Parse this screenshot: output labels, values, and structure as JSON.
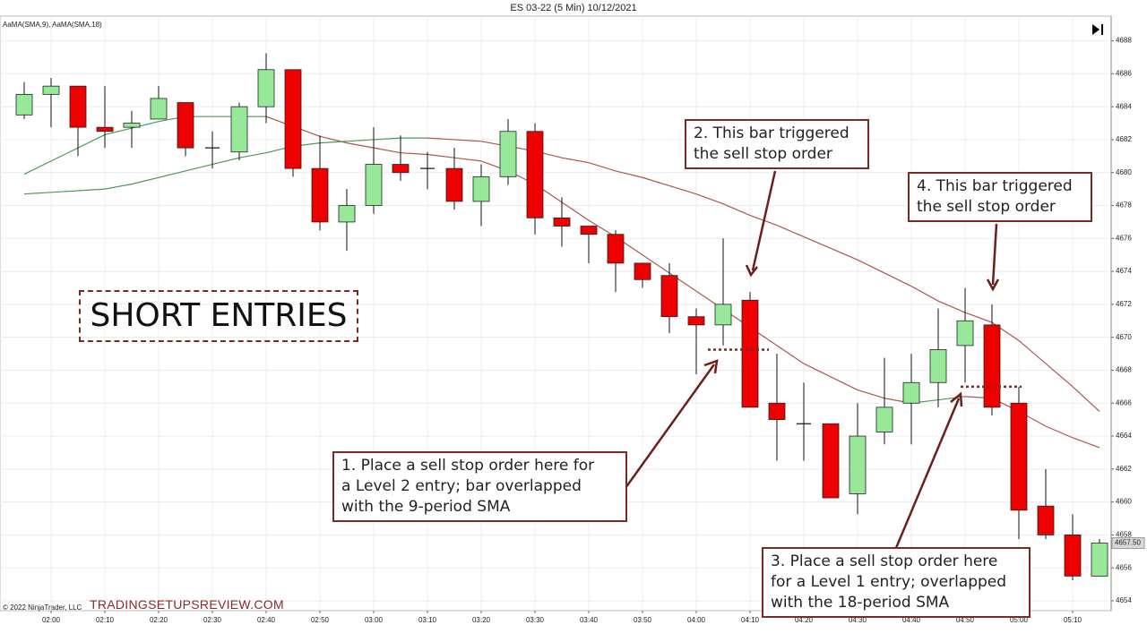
{
  "chart_data": {
    "type": "candlestick",
    "title": "ES 03-22 (5 Min)  10/12/2021",
    "indicator_label": "AaMA(SMA,9), AaMA(SMA,18)",
    "copyright": "© 2022 NinjaTrader, LLC",
    "watermark": "TRADINGSETUPSREVIEW.COM",
    "boxed_label": "SHORT ENTRIES",
    "categories": [
      null,
      "02:00",
      null,
      "02:10",
      null,
      "02:20",
      null,
      "02:30",
      null,
      "02:40",
      null,
      "02:50",
      null,
      "03:00",
      null,
      "03:10",
      null,
      "03:20",
      null,
      "03:30",
      null,
      "03:40",
      null,
      "03:50",
      null,
      "04:00",
      null,
      "04:10",
      null,
      "04:20",
      null,
      "04:30",
      null,
      "04:40",
      null,
      "04:50",
      null,
      "05:00",
      null,
      "05:10",
      null
    ],
    "open": [
      4683.5,
      4684.75,
      4685.25,
      4682.75,
      4682.75,
      4683.25,
      4684.25,
      4681.5,
      4681.25,
      4684,
      4686.25,
      4680.25,
      4677,
      4678,
      4680.5,
      4680.25,
      4680.25,
      4678.25,
      4679.75,
      4682.5,
      4677.25,
      4676.75,
      4676.25,
      4674.5,
      4673.75,
      4671.25,
      4670.75,
      4672.25,
      4666,
      4664.75,
      4664.75,
      4660.5,
      4664.25,
      4666,
      4667.25,
      4669.5,
      4670.75,
      4666,
      4659.75,
      4658,
      4655.5
    ],
    "high": [
      4685.5,
      4685.75,
      4685.25,
      4685.25,
      4683.75,
      4685.25,
      4684.25,
      4682.5,
      4684.25,
      4687.25,
      4686.25,
      4682.25,
      4679,
      4682.75,
      4682.25,
      4681.25,
      4681.5,
      4680.5,
      4683.25,
      4683,
      4678.5,
      4676.75,
      4676.5,
      4674.5,
      4674.5,
      4671.75,
      4676,
      4672.75,
      4669,
      4667.25,
      4664.75,
      4666,
      4668.75,
      4669,
      4671.75,
      4673,
      4672,
      4667,
      4662,
      4659.25,
      4657.75
    ],
    "low": [
      4683.25,
      4682.75,
      4681,
      4681.5,
      4681.5,
      4683.25,
      4681,
      4680.25,
      4680.75,
      4683,
      4679.75,
      4676.5,
      4675.25,
      4677.5,
      4679.5,
      4679,
      4677.75,
      4676.75,
      4679.25,
      4676.25,
      4675.5,
      4674.5,
      4672.75,
      4673,
      4670.25,
      4667.75,
      4669.5,
      4665.75,
      4662.5,
      4662.5,
      4660.25,
      4659.25,
      4663.5,
      4663.5,
      4665.75,
      4667.25,
      4665.25,
      4657.75,
      4657.75,
      4655.25,
      4655.5
    ],
    "close": [
      4684.75,
      4685.25,
      4682.75,
      4682.5,
      4683,
      4684.5,
      4681.5,
      4681.5,
      4684,
      4686.25,
      4680.25,
      4677,
      4678,
      4680.5,
      4680,
      4680.25,
      4678.25,
      4679.75,
      4682.5,
      4677.25,
      4676.75,
      4676.25,
      4674.5,
      4673.5,
      4671.25,
      4670.75,
      4672,
      4665.75,
      4665,
      4664.75,
      4660.25,
      4664,
      4665.75,
      4667.25,
      4669.25,
      4671,
      4665.75,
      4659.5,
      4658,
      4655.5,
      4657.5
    ],
    "up_color": "#98e89a",
    "down_color": "#ee0000",
    "series": [
      {
        "rise_color": "#4c9a5a",
        "fall_color": "#b0544c",
        "values": [
          4679.9,
          4680.7,
          4681.5,
          4682.3,
          4682.7,
          4683.1,
          4683.4,
          4683.4,
          4683.4,
          4683.4,
          4682.8,
          4682.2,
          4681.8,
          4681.5,
          4681.2,
          4681.1,
          4680.9,
          4680.7,
          4680.1,
          4679.3,
          4678.2,
          4677.1,
          4676.1,
          4675.0,
          4673.9,
          4672.8,
          4671.7,
          4670.6,
          4669.5,
          4668.4,
          4667.6,
          4666.8,
          4666.3,
          4666.0,
          4666.2,
          4666.4,
          4666.3,
          4665.5,
          4664.6,
          4663.9,
          4663.3
        ]
      },
      {
        "rise_color": "#4c9a5a",
        "fall_color": "#b0544c",
        "values": [
          4678.7,
          4678.8,
          4678.9,
          4679.0,
          4679.3,
          4679.7,
          4680.1,
          4680.5,
          4680.9,
          4681.2,
          4681.6,
          4681.8,
          4681.9,
          4682.0,
          4682.1,
          4682.1,
          4682.0,
          4681.9,
          4681.6,
          4681.3,
          4680.9,
          4680.6,
          4680.1,
          4679.7,
          4679.2,
          4678.7,
          4678.1,
          4677.4,
          4676.8,
          4676.1,
          4675.4,
          4674.7,
          4673.9,
          4673.1,
          4672.2,
          4671.5,
          4670.9,
          4669.8,
          4668.4,
          4667.0,
          4665.5
        ]
      }
    ],
    "ylim": [
      4653.4,
      4689.5
    ],
    "yticks": [
      4654,
      4656,
      4658,
      4660,
      4662,
      4664,
      4666,
      4668,
      4670,
      4672,
      4674,
      4676,
      4678,
      4680,
      4682,
      4684,
      4686,
      4688
    ],
    "grid": true,
    "last_price": {
      "value": 4657.5,
      "label": "4657.50"
    },
    "entry_levels": [
      4669.25,
      4667.0
    ],
    "annotations": [
      {
        "lines": [
          "1. Place a sell stop order here for",
          "a Level 2 entry; bar overlapped",
          "with the 9-period SMA"
        ]
      },
      {
        "lines": [
          "2. This bar triggered",
          "the sell stop order"
        ]
      },
      {
        "lines": [
          "3. Place a sell stop order here",
          "for a Level 1 entry; overlapped",
          "with the 18-period SMA"
        ]
      },
      {
        "lines": [
          "4. This bar triggered",
          "the sell stop order"
        ]
      }
    ]
  }
}
